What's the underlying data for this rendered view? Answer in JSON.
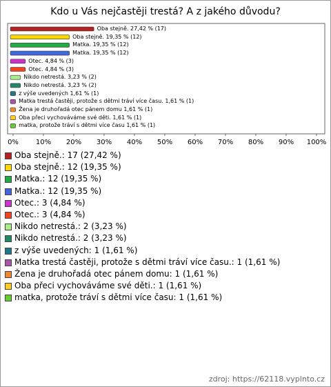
{
  "chart_data": {
    "type": "bar",
    "orientation": "horizontal",
    "title": "Kdo u Vás nejčastěji trestá? A z jakého důvodu?",
    "categories": [
      "Oba stejně.",
      "Oba stejně.",
      "Matka.",
      "Matka.",
      "Otec.",
      "Otec.",
      "Nikdo netrestá.",
      "Nikdo netrestá.",
      "z výše uvedených",
      "Matka trestá častěji, protože s dětmi tráví více času.",
      "Žena je druhořadá otec pánem domu",
      "Oba přeci vychováváme své děti.",
      "matka, protože tráví s dětmi více času"
    ],
    "values": [
      27.42,
      19.35,
      19.35,
      19.35,
      4.84,
      4.84,
      3.23,
      3.23,
      1.61,
      1.61,
      1.61,
      1.61,
      1.61
    ],
    "value_labels": [
      "27,42 %",
      "19,35 %",
      "19,35 %",
      "19,35 %",
      "4,84 %",
      "4,84 %",
      "3,23 %",
      "3,23 %",
      "1,61 %",
      "1,61 %",
      "1,61 %",
      "1,61 %",
      "1,61 %"
    ],
    "counts": [
      17,
      12,
      12,
      12,
      3,
      3,
      2,
      2,
      1,
      1,
      1,
      1,
      1
    ],
    "colors": [
      "#b22222",
      "#ffd700",
      "#22aa44",
      "#4466dd",
      "#cc33cc",
      "#ee4422",
      "#aaee88",
      "#228866",
      "#227788",
      "#aa55aa",
      "#ee8833",
      "#ffcc22",
      "#66cc33"
    ],
    "xlim": [
      0,
      100
    ],
    "xticks": [
      {
        "value": 0,
        "label": "0%"
      },
      {
        "value": 10,
        "label": "10%"
      },
      {
        "value": 20,
        "label": "20%"
      },
      {
        "value": 30,
        "label": "30%"
      },
      {
        "value": 40,
        "label": "40%"
      },
      {
        "value": 50,
        "label": "50%"
      },
      {
        "value": 60,
        "label": "60%"
      },
      {
        "value": 70,
        "label": "70%"
      },
      {
        "value": 80,
        "label": "80%"
      },
      {
        "value": 90,
        "label": "90%"
      },
      {
        "value": 100,
        "label": "100%"
      }
    ],
    "source": "zdroj: https://62118.vyplnto.cz"
  }
}
